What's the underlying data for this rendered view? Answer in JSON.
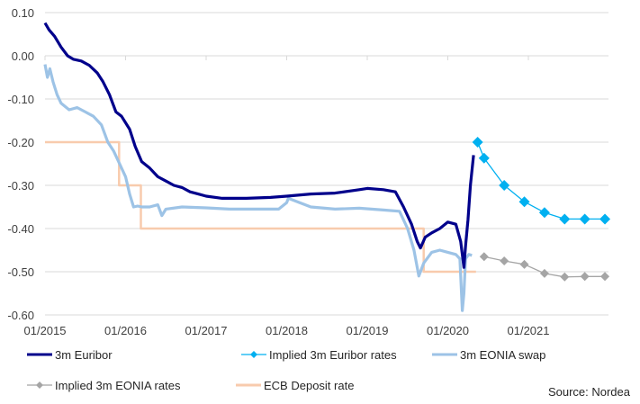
{
  "chart_data": {
    "type": "line",
    "title": "",
    "xlabel": "",
    "ylabel": "",
    "ylim": [
      -0.6,
      0.1
    ],
    "xlim": [
      2015.0,
      2022.0
    ],
    "yticks": [
      0.1,
      0.0,
      -0.1,
      -0.2,
      -0.3,
      -0.4,
      -0.5,
      -0.6
    ],
    "ytick_labels": [
      "0.10",
      "0.00",
      "-0.10",
      "-0.20",
      "-0.30",
      "-0.40",
      "-0.50",
      "-0.60"
    ],
    "xticks": [
      2015,
      2016,
      2017,
      2018,
      2019,
      2020,
      2021
    ],
    "xtick_labels": [
      "01/2015",
      "01/2016",
      "01/2017",
      "01/2018",
      "01/2019",
      "01/2020",
      "01/2021"
    ],
    "grid": "horizontal",
    "legend_position": "bottom",
    "source_note": "Source: Nordea",
    "series": [
      {
        "name": "3m Euribor",
        "color": "#00008B",
        "marker": "none",
        "x": [
          2015.0,
          2015.05,
          2015.12,
          2015.2,
          2015.28,
          2015.35,
          2015.45,
          2015.55,
          2015.65,
          2015.72,
          2015.8,
          2015.88,
          2015.95,
          2016.05,
          2016.12,
          2016.2,
          2016.3,
          2016.4,
          2016.5,
          2016.6,
          2016.7,
          2016.8,
          2016.9,
          2017.0,
          2017.2,
          2017.5,
          2017.8,
          2018.0,
          2018.3,
          2018.6,
          2018.9,
          2019.0,
          2019.2,
          2019.35,
          2019.45,
          2019.55,
          2019.62,
          2019.66,
          2019.72,
          2019.8,
          2019.9,
          2020.0,
          2020.1,
          2020.16,
          2020.2,
          2020.22,
          2020.25,
          2020.28,
          2020.32
        ],
        "values": [
          0.076,
          0.06,
          0.045,
          0.02,
          0.0,
          -0.008,
          -0.012,
          -0.022,
          -0.04,
          -0.06,
          -0.09,
          -0.13,
          -0.14,
          -0.17,
          -0.21,
          -0.245,
          -0.26,
          -0.28,
          -0.29,
          -0.3,
          -0.305,
          -0.315,
          -0.32,
          -0.325,
          -0.33,
          -0.33,
          -0.328,
          -0.325,
          -0.32,
          -0.318,
          -0.31,
          -0.307,
          -0.31,
          -0.315,
          -0.35,
          -0.39,
          -0.43,
          -0.445,
          -0.42,
          -0.41,
          -0.4,
          -0.385,
          -0.39,
          -0.43,
          -0.49,
          -0.44,
          -0.38,
          -0.3,
          -0.23
        ]
      },
      {
        "name": "Implied 3m Euribor rates",
        "color": "#00B0F0",
        "marker": "diamond",
        "x": [
          2020.37,
          2020.45,
          2020.7,
          2020.95,
          2021.2,
          2021.45,
          2021.7,
          2021.95
        ],
        "values": [
          -0.2,
          -0.237,
          -0.3,
          -0.338,
          -0.363,
          -0.378,
          -0.378,
          -0.378
        ]
      },
      {
        "name": "3m EONIA swap",
        "color": "#9DC3E6",
        "marker": "none",
        "x": [
          2015.0,
          2015.03,
          2015.06,
          2015.1,
          2015.15,
          2015.2,
          2015.3,
          2015.4,
          2015.5,
          2015.6,
          2015.7,
          2015.78,
          2015.85,
          2015.9,
          2016.0,
          2016.05,
          2016.1,
          2016.15,
          2016.2,
          2016.3,
          2016.4,
          2016.45,
          2016.5,
          2016.7,
          2017.0,
          2017.3,
          2017.6,
          2017.9,
          2018.0,
          2018.02,
          2018.3,
          2018.6,
          2018.9,
          2019.2,
          2019.4,
          2019.5,
          2019.58,
          2019.64,
          2019.7,
          2019.8,
          2019.9,
          2020.0,
          2020.1,
          2020.15,
          2020.18,
          2020.2,
          2020.22,
          2020.26,
          2020.3
        ],
        "values": [
          -0.02,
          -0.05,
          -0.03,
          -0.06,
          -0.09,
          -0.11,
          -0.125,
          -0.12,
          -0.13,
          -0.14,
          -0.16,
          -0.2,
          -0.22,
          -0.24,
          -0.28,
          -0.32,
          -0.35,
          -0.348,
          -0.35,
          -0.35,
          -0.345,
          -0.37,
          -0.355,
          -0.35,
          -0.352,
          -0.355,
          -0.355,
          -0.355,
          -0.34,
          -0.33,
          -0.35,
          -0.355,
          -0.353,
          -0.357,
          -0.36,
          -0.4,
          -0.45,
          -0.51,
          -0.48,
          -0.455,
          -0.45,
          -0.455,
          -0.46,
          -0.47,
          -0.59,
          -0.55,
          -0.47,
          -0.46,
          -0.462
        ]
      },
      {
        "name": "Implied 3m EONIA rates",
        "color": "#A5A5A5",
        "marker": "diamond",
        "x": [
          2020.45,
          2020.7,
          2020.95,
          2021.2,
          2021.45,
          2021.7,
          2021.95
        ],
        "values": [
          -0.465,
          -0.475,
          -0.483,
          -0.504,
          -0.512,
          -0.511,
          -0.511
        ]
      },
      {
        "name": "ECB Deposit rate",
        "color": "#F8CBAD",
        "marker": "none",
        "step": true,
        "x": [
          2015.0,
          2015.92,
          2015.92,
          2016.19,
          2016.19,
          2019.7,
          2019.7,
          2020.35
        ],
        "values": [
          -0.2,
          -0.2,
          -0.3,
          -0.3,
          -0.4,
          -0.4,
          -0.5,
          -0.5
        ]
      }
    ]
  }
}
